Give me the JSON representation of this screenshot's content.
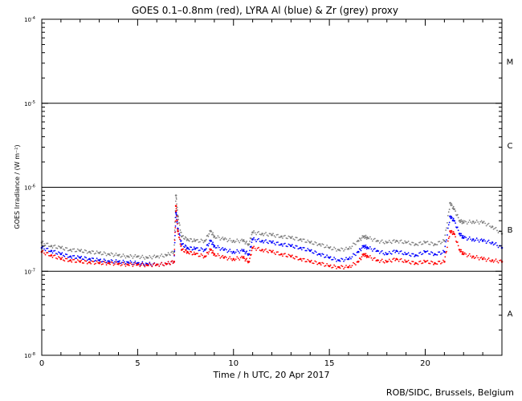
{
  "chart_data": {
    "type": "scatter",
    "title": "GOES 0.1–0.8nm (red), LYRA Al (blue) & Zr (grey) proxy",
    "xlabel": "Time / h UTC, 20 Apr 2017",
    "ylabel": "GOES Irradiance / (W m⁻²)",
    "xlim": [
      0,
      24
    ],
    "ylim": [
      1e-08,
      0.0001
    ],
    "yscale": "log",
    "x_ticks": [
      0,
      5,
      10,
      15,
      20
    ],
    "x_tick_labels": [
      "0",
      "5",
      "10",
      "15",
      "20"
    ],
    "y_ticks": [
      1e-08,
      1e-07,
      1e-06,
      1e-05,
      0.0001
    ],
    "y_tick_labels": [
      {
        "base": "10",
        "exp": "-8"
      },
      {
        "base": "10",
        "exp": "-7"
      },
      {
        "base": "10",
        "exp": "-6"
      },
      {
        "base": "10",
        "exp": "-5"
      },
      {
        "base": "10",
        "exp": "-4"
      }
    ],
    "flare_class_lines": [
      1e-07,
      1e-06,
      1e-05
    ],
    "flare_classes": [
      {
        "label": "A",
        "center": 3.16e-08
      },
      {
        "label": "B",
        "center": 3.16e-07
      },
      {
        "label": "C",
        "center": 3.16e-06
      },
      {
        "label": "M",
        "center": 3.16e-05
      }
    ],
    "series": [
      {
        "name": "GOES 0.1–0.8nm",
        "color": "#ff0000",
        "x": [
          0,
          0.5,
          1,
          1.5,
          2,
          2.5,
          3,
          3.5,
          4,
          4.5,
          5,
          5.5,
          6,
          6.5,
          6.9,
          7.0,
          7.1,
          7.3,
          7.6,
          8,
          8.5,
          8.8,
          9,
          9.5,
          10,
          10.5,
          10.8,
          11,
          11.5,
          12,
          12.5,
          13,
          13.5,
          14,
          14.5,
          15,
          15.5,
          16,
          16.5,
          16.8,
          17,
          17.5,
          18,
          18.5,
          19,
          19.5,
          20,
          20.5,
          21,
          21.3,
          21.5,
          21.8,
          22,
          22.5,
          23,
          23.5,
          24
        ],
        "y": [
          1.7e-07,
          1.55e-07,
          1.4e-07,
          1.35e-07,
          1.3e-07,
          1.28e-07,
          1.25e-07,
          1.25e-07,
          1.22e-07,
          1.2e-07,
          1.2e-07,
          1.18e-07,
          1.2e-07,
          1.22e-07,
          1.3e-07,
          6e-07,
          3e-07,
          1.8e-07,
          1.7e-07,
          1.6e-07,
          1.5e-07,
          1.8e-07,
          1.6e-07,
          1.45e-07,
          1.4e-07,
          1.45e-07,
          1.3e-07,
          1.9e-07,
          1.8e-07,
          1.7e-07,
          1.6e-07,
          1.5e-07,
          1.4e-07,
          1.3e-07,
          1.25e-07,
          1.15e-07,
          1.12e-07,
          1.12e-07,
          1.3e-07,
          1.6e-07,
          1.5e-07,
          1.35e-07,
          1.3e-07,
          1.4e-07,
          1.3e-07,
          1.25e-07,
          1.3e-07,
          1.25e-07,
          1.3e-07,
          3e-07,
          2.8e-07,
          1.8e-07,
          1.6e-07,
          1.5e-07,
          1.4e-07,
          1.35e-07,
          1.3e-07
        ]
      },
      {
        "name": "LYRA Al proxy",
        "color": "#0000ff",
        "x": [
          0,
          0.5,
          1,
          1.5,
          2,
          2.5,
          3,
          3.5,
          4,
          4.5,
          5,
          5.5,
          6,
          6.5,
          6.9,
          7.0,
          7.1,
          7.3,
          7.6,
          8,
          8.5,
          8.8,
          9,
          9.5,
          10,
          10.5,
          10.8,
          11,
          11.5,
          12,
          12.5,
          13,
          13.5,
          14,
          14.5,
          15,
          15.5,
          16,
          16.5,
          16.8,
          17,
          17.5,
          18,
          18.5,
          19,
          19.5,
          20,
          20.5,
          21,
          21.3,
          21.5,
          21.8,
          22,
          22.5,
          23,
          23.5,
          24
        ],
        "y": [
          1.9e-07,
          1.75e-07,
          1.6e-07,
          1.5e-07,
          1.45e-07,
          1.4e-07,
          1.35e-07,
          1.32e-07,
          1.3e-07,
          1.28e-07,
          1.25e-07,
          1.22e-07,
          1.2e-07,
          1.22e-07,
          1.3e-07,
          5e-07,
          3.2e-07,
          2.1e-07,
          1.9e-07,
          1.85e-07,
          1.8e-07,
          2.3e-07,
          2e-07,
          1.8e-07,
          1.7e-07,
          1.75e-07,
          1.6e-07,
          2.4e-07,
          2.3e-07,
          2.2e-07,
          2.1e-07,
          2e-07,
          1.9e-07,
          1.75e-07,
          1.6e-07,
          1.45e-07,
          1.35e-07,
          1.4e-07,
          1.7e-07,
          2e-07,
          1.9e-07,
          1.75e-07,
          1.6e-07,
          1.75e-07,
          1.6e-07,
          1.55e-07,
          1.7e-07,
          1.6e-07,
          1.7e-07,
          4.5e-07,
          4e-07,
          2.8e-07,
          2.5e-07,
          2.4e-07,
          2.3e-07,
          2.2e-07,
          1.9e-07
        ]
      },
      {
        "name": "LYRA Zr proxy",
        "color": "#808080",
        "x": [
          0,
          0.5,
          1,
          1.5,
          2,
          2.5,
          3,
          3.5,
          4,
          4.5,
          5,
          5.5,
          6,
          6.5,
          6.9,
          7.0,
          7.1,
          7.3,
          7.6,
          8,
          8.5,
          8.8,
          9,
          9.5,
          10,
          10.5,
          10.8,
          11,
          11.5,
          12,
          12.5,
          13,
          13.5,
          14,
          14.5,
          15,
          15.5,
          16,
          16.5,
          16.8,
          17,
          17.5,
          18,
          18.5,
          19,
          19.5,
          20,
          20.5,
          21,
          21.3,
          21.5,
          21.8,
          22,
          22.5,
          23,
          23.5,
          24
        ],
        "y": [
          2.2e-07,
          2e-07,
          1.9e-07,
          1.8e-07,
          1.75e-07,
          1.7e-07,
          1.65e-07,
          1.6e-07,
          1.55e-07,
          1.5e-07,
          1.5e-07,
          1.45e-07,
          1.5e-07,
          1.55e-07,
          1.7e-07,
          8e-07,
          4.5e-07,
          2.6e-07,
          2.4e-07,
          2.3e-07,
          2.3e-07,
          3e-07,
          2.6e-07,
          2.4e-07,
          2.3e-07,
          2.3e-07,
          2.1e-07,
          2.9e-07,
          2.8e-07,
          2.7e-07,
          2.6e-07,
          2.5e-07,
          2.4e-07,
          2.2e-07,
          2.1e-07,
          1.9e-07,
          1.8e-07,
          1.85e-07,
          2.3e-07,
          2.6e-07,
          2.5e-07,
          2.3e-07,
          2.2e-07,
          2.3e-07,
          2.2e-07,
          2.1e-07,
          2.2e-07,
          2.1e-07,
          2.3e-07,
          6.5e-07,
          5.5e-07,
          4e-07,
          3.8e-07,
          3.9e-07,
          3.8e-07,
          3.4e-07,
          2.8e-07
        ]
      }
    ]
  },
  "footer": "ROB/SIDC, Brussels, Belgium"
}
